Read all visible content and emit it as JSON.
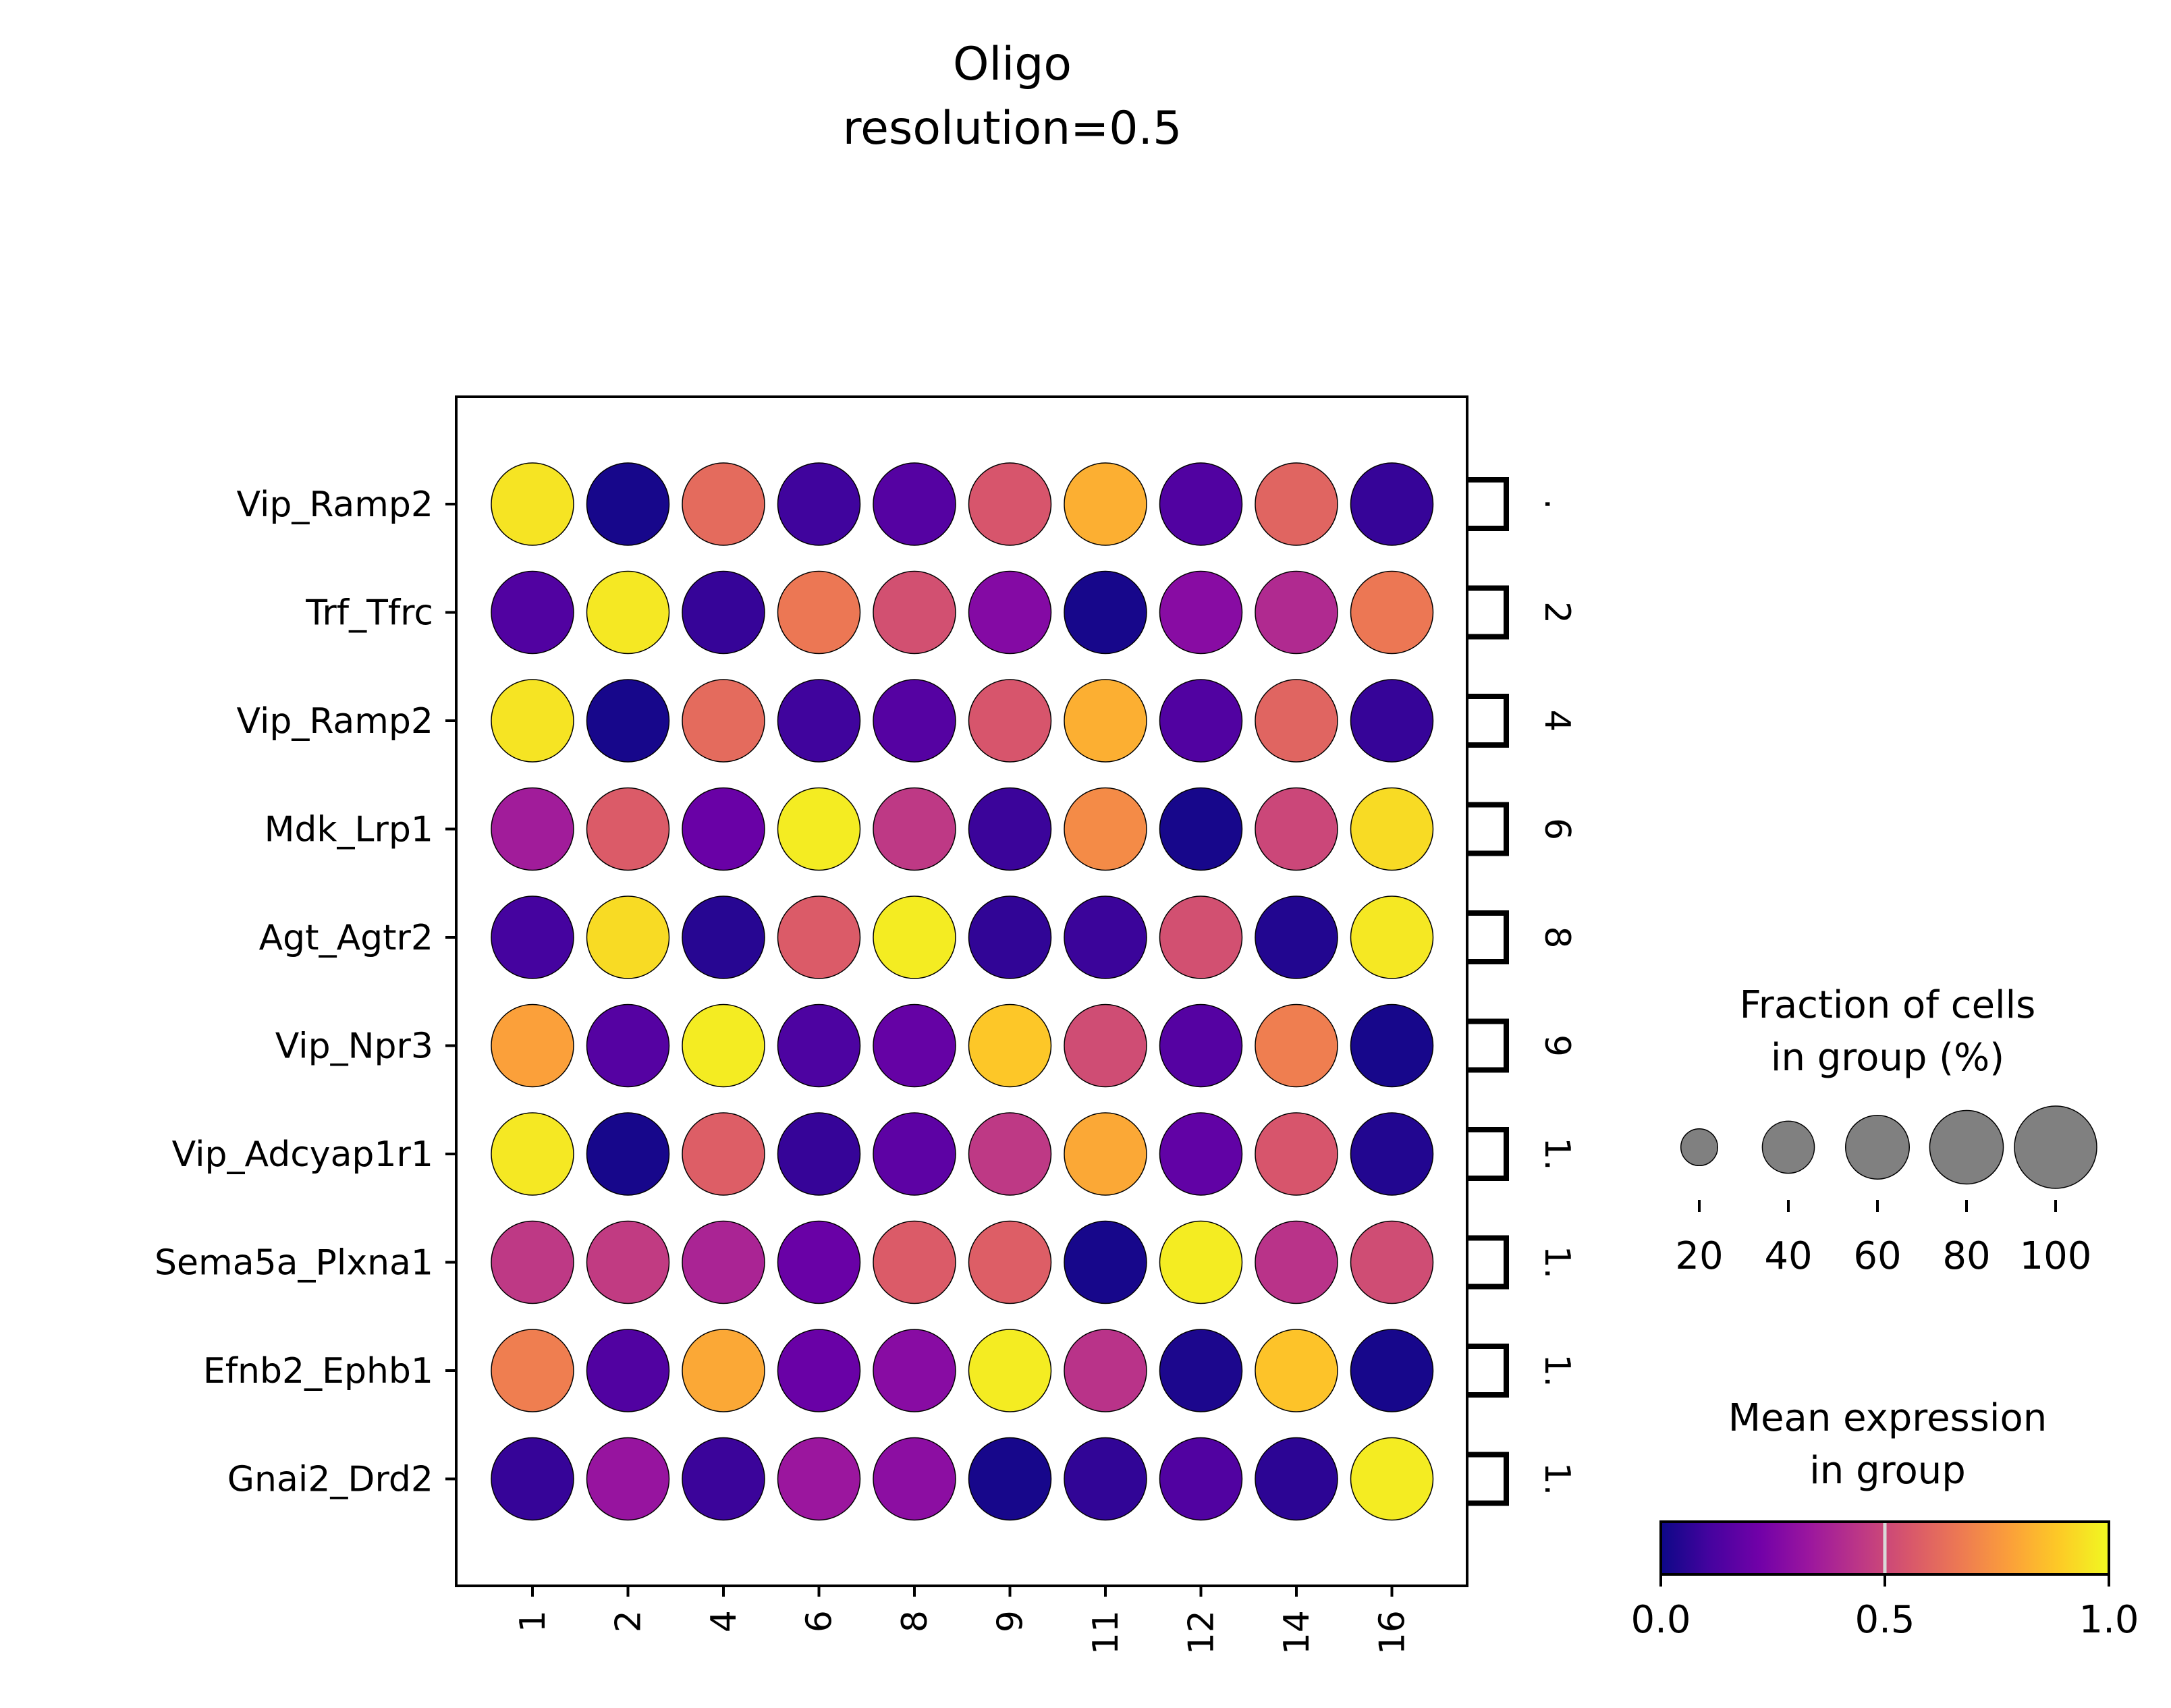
{
  "chart_data": {
    "type": "dotplot",
    "title_lines": [
      "Oligo",
      "resolution=0.5"
    ],
    "categories": [
      "1",
      "2",
      "4",
      "6",
      "8",
      "9",
      "11",
      "12",
      "14",
      "16"
    ],
    "rows": [
      "Vip_Ramp2",
      "Trf_Tfrc",
      "Vip_Ramp2",
      "Mdk_Lrp1",
      "Agt_Agtr2",
      "Vip_Npr3",
      "Vip_Adcyap1r1",
      "Sema5a_Plxna1",
      "Efnb2_Ephb1",
      "Gnai2_Drd2"
    ],
    "right_bracket_labels": [
      ".",
      "2",
      "4",
      "6",
      "8",
      "9",
      "1.",
      "1.",
      "1.",
      "1."
    ],
    "mean_expression": [
      [
        0.95,
        0.02,
        0.62,
        0.1,
        0.15,
        0.55,
        0.82,
        0.14,
        0.6,
        0.08
      ],
      [
        0.14,
        0.96,
        0.08,
        0.66,
        0.53,
        0.27,
        0.02,
        0.28,
        0.4,
        0.66
      ],
      [
        0.95,
        0.02,
        0.62,
        0.1,
        0.15,
        0.55,
        0.82,
        0.14,
        0.6,
        0.08
      ],
      [
        0.35,
        0.57,
        0.2,
        0.97,
        0.45,
        0.09,
        0.72,
        0.02,
        0.5,
        0.93
      ],
      [
        0.11,
        0.93,
        0.05,
        0.57,
        0.97,
        0.07,
        0.09,
        0.53,
        0.04,
        0.96
      ],
      [
        0.78,
        0.15,
        0.97,
        0.13,
        0.19,
        0.88,
        0.52,
        0.15,
        0.68,
        0.02
      ],
      [
        0.96,
        0.02,
        0.58,
        0.08,
        0.17,
        0.45,
        0.8,
        0.18,
        0.55,
        0.04
      ],
      [
        0.45,
        0.46,
        0.38,
        0.2,
        0.57,
        0.58,
        0.02,
        0.97,
        0.43,
        0.52
      ],
      [
        0.68,
        0.14,
        0.8,
        0.2,
        0.28,
        0.97,
        0.43,
        0.03,
        0.87,
        0.02
      ],
      [
        0.08,
        0.32,
        0.09,
        0.33,
        0.29,
        0.02,
        0.07,
        0.14,
        0.06,
        0.97
      ]
    ],
    "fraction_of_cells_pct": [
      [
        100,
        100,
        100,
        100,
        100,
        100,
        100,
        100,
        100,
        100
      ],
      [
        100,
        100,
        100,
        100,
        100,
        100,
        100,
        100,
        100,
        100
      ],
      [
        100,
        100,
        100,
        100,
        100,
        100,
        100,
        100,
        100,
        100
      ],
      [
        100,
        100,
        100,
        100,
        100,
        100,
        100,
        100,
        100,
        100
      ],
      [
        100,
        100,
        100,
        100,
        100,
        100,
        100,
        100,
        100,
        100
      ],
      [
        100,
        100,
        100,
        100,
        100,
        100,
        100,
        100,
        100,
        100
      ],
      [
        100,
        100,
        100,
        100,
        100,
        100,
        100,
        100,
        100,
        100
      ],
      [
        100,
        100,
        100,
        100,
        100,
        100,
        100,
        100,
        100,
        100
      ],
      [
        100,
        100,
        100,
        100,
        100,
        100,
        100,
        100,
        100,
        100
      ],
      [
        100,
        100,
        100,
        100,
        100,
        100,
        100,
        100,
        100,
        100
      ]
    ],
    "colormap": "plasma",
    "colormap_stops": [
      "#0d0887",
      "#46039f",
      "#7201a8",
      "#9c179e",
      "#bd3786",
      "#d8576b",
      "#ed7953",
      "#fb9f3a",
      "#fdca26",
      "#f0f921"
    ],
    "size_legend": {
      "title_lines": [
        "Fraction of cells",
        "in group (%)"
      ],
      "values": [
        20,
        40,
        60,
        80,
        100
      ],
      "labels": [
        "20",
        "40",
        "60",
        "80",
        "100"
      ]
    },
    "color_legend": {
      "title_lines": [
        "Mean expression",
        "in group"
      ],
      "ticks": [
        0.0,
        0.5,
        1.0
      ],
      "tick_labels": [
        "0.0",
        "0.5",
        "1.0"
      ]
    },
    "legend_placement": "right",
    "grid": false
  }
}
